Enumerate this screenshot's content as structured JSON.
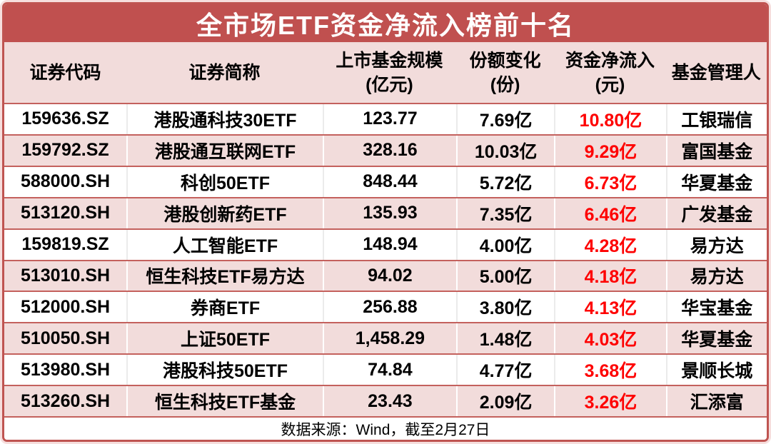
{
  "title": "全市场ETF资金净流入榜前十名",
  "columns": [
    {
      "label": "证券代码",
      "unit": ""
    },
    {
      "label": "证券简称",
      "unit": ""
    },
    {
      "label": "上市基金规模",
      "unit": "(亿元)"
    },
    {
      "label": "份额变化",
      "unit": "(份)"
    },
    {
      "label": "资金净流入",
      "unit": "(元)"
    },
    {
      "label": "基金管理人",
      "unit": ""
    }
  ],
  "rows": [
    {
      "code": "159636.SZ",
      "name": "港股通科技30ETF",
      "scale": "123.77",
      "share_change": "7.69亿",
      "net_inflow": "10.80亿",
      "manager": "工银瑞信"
    },
    {
      "code": "159792.SZ",
      "name": "港股通互联网ETF",
      "scale": "328.16",
      "share_change": "10.03亿",
      "net_inflow": "9.29亿",
      "manager": "富国基金"
    },
    {
      "code": "588000.SH",
      "name": "科创50ETF",
      "scale": "848.44",
      "share_change": "5.72亿",
      "net_inflow": "6.73亿",
      "manager": "华夏基金"
    },
    {
      "code": "513120.SH",
      "name": "港股创新药ETF",
      "scale": "135.93",
      "share_change": "7.35亿",
      "net_inflow": "6.46亿",
      "manager": "广发基金"
    },
    {
      "code": "159819.SZ",
      "name": "人工智能ETF",
      "scale": "148.94",
      "share_change": "4.00亿",
      "net_inflow": "4.28亿",
      "manager": "易方达"
    },
    {
      "code": "513010.SH",
      "name": "恒生科技ETF易方达",
      "scale": "94.02",
      "share_change": "5.00亿",
      "net_inflow": "4.18亿",
      "manager": "易方达"
    },
    {
      "code": "512000.SH",
      "name": "券商ETF",
      "scale": "256.88",
      "share_change": "3.80亿",
      "net_inflow": "4.13亿",
      "manager": "华宝基金"
    },
    {
      "code": "510050.SH",
      "name": "上证50ETF",
      "scale": "1,458.29",
      "share_change": "1.48亿",
      "net_inflow": "4.03亿",
      "manager": "华夏基金"
    },
    {
      "code": "513980.SH",
      "name": "港股科技50ETF",
      "scale": "74.84",
      "share_change": "4.77亿",
      "net_inflow": "3.68亿",
      "manager": "景顺长城"
    },
    {
      "code": "513260.SH",
      "name": "恒生科技ETF基金",
      "scale": "23.43",
      "share_change": "2.09亿",
      "net_inflow": "3.26亿",
      "manager": "汇添富"
    }
  ],
  "footer": {
    "text": "数据来源：Wind，截至2月27日"
  },
  "colors": {
    "title_bar_bg": "#c0504f",
    "stripe_pink": "#f2dcdb",
    "border_red": "#c4615d",
    "frame_red": "#bf5451",
    "net_inflow_red": "#fe0000"
  },
  "chart_data": {
    "type": "table",
    "title": "全市场ETF资金净流入榜前十名",
    "columns": [
      "证券代码",
      "证券简称",
      "上市基金规模(亿元)",
      "份额变化(份)",
      "资金净流入(元)",
      "基金管理人"
    ],
    "rows": [
      [
        "159636.SZ",
        "港股通科技30ETF",
        "123.77",
        "7.69亿",
        "10.80亿",
        "工银瑞信"
      ],
      [
        "159792.SZ",
        "港股通互联网ETF",
        "328.16",
        "10.03亿",
        "9.29亿",
        "富国基金"
      ],
      [
        "588000.SH",
        "科创50ETF",
        "848.44",
        "5.72亿",
        "6.73亿",
        "华夏基金"
      ],
      [
        "513120.SH",
        "港股创新药ETF",
        "135.93",
        "7.35亿",
        "6.46亿",
        "广发基金"
      ],
      [
        "159819.SZ",
        "人工智能ETF",
        "148.94",
        "4.00亿",
        "4.28亿",
        "易方达"
      ],
      [
        "513010.SH",
        "恒生科技ETF易方达",
        "94.02",
        "5.00亿",
        "4.18亿",
        "易方达"
      ],
      [
        "512000.SH",
        "券商ETF",
        "256.88",
        "3.80亿",
        "4.13亿",
        "华宝基金"
      ],
      [
        "510050.SH",
        "上证50ETF",
        "1,458.29",
        "1.48亿",
        "4.03亿",
        "华夏基金"
      ],
      [
        "513980.SH",
        "港股科技50ETF",
        "74.84",
        "4.77亿",
        "3.68亿",
        "景顺长城"
      ],
      [
        "513260.SH",
        "恒生科技ETF基金",
        "23.43",
        "2.09亿",
        "3.26亿",
        "汇添富"
      ]
    ],
    "source_note": "数据来源：Wind，截至2月27日"
  }
}
